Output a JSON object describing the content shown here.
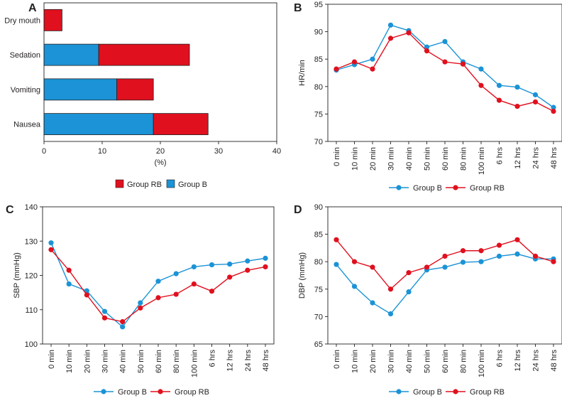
{
  "colors": {
    "group_b": "#1b93d6",
    "group_rb": "#e0101e",
    "axis": "#231f20"
  },
  "chart_data": [
    {
      "panel": "A",
      "type": "bar",
      "orientation": "horizontal",
      "stacked": true,
      "categories": [
        "Dry mouth",
        "Sedation",
        "Vomiting",
        "Nausea"
      ],
      "series": [
        {
          "name": "Group B",
          "values": [
            0,
            9.4,
            12.5,
            18.8
          ]
        },
        {
          "name": "Group RB",
          "values": [
            3.1,
            15.6,
            6.3,
            9.4
          ]
        }
      ],
      "xlim": [
        0,
        40
      ],
      "xticks": [
        "0",
        "10",
        "20",
        "30",
        "40"
      ],
      "xlabel": "(%)",
      "legend": [
        "Group RB",
        "Group B"
      ],
      "legend_position": "bottom"
    },
    {
      "panel": "B",
      "type": "line",
      "categories": [
        "0 min",
        "10 min",
        "20 min",
        "30 min",
        "40 min",
        "50 min",
        "60 min",
        "80 min",
        "100 min",
        "6 hrs",
        "12 hrs",
        "24 hrs",
        "48 hrs"
      ],
      "series": [
        {
          "name": "Group B",
          "values": [
            83.0,
            84.0,
            85.0,
            91.2,
            90.2,
            87.2,
            88.2,
            84.5,
            83.2,
            80.2,
            79.9,
            78.5,
            76.2
          ]
        },
        {
          "name": "Group RB",
          "values": [
            83.2,
            84.5,
            83.2,
            88.8,
            89.8,
            86.5,
            84.5,
            84.1,
            80.2,
            77.5,
            76.4,
            77.2,
            75.5
          ]
        }
      ],
      "ylim": [
        70,
        95
      ],
      "yticks": [
        "70",
        "75",
        "80",
        "85",
        "90",
        "95"
      ],
      "ylabel": "HR/min",
      "legend": [
        "Group B",
        "Group RB"
      ],
      "legend_position": "bottom"
    },
    {
      "panel": "C",
      "type": "line",
      "categories": [
        "0 min",
        "10 min",
        "20 min",
        "30 min",
        "40 min",
        "50 min",
        "60 min",
        "80 min",
        "100 min",
        "6 hrs",
        "12 hrs",
        "24 hrs",
        "48 hrs"
      ],
      "series": [
        {
          "name": "Group B",
          "values": [
            129.5,
            117.5,
            115.5,
            109.5,
            105.0,
            112.0,
            118.3,
            120.5,
            122.5,
            123.1,
            123.3,
            124.2,
            125.0
          ]
        },
        {
          "name": "Group RB",
          "values": [
            127.5,
            121.5,
            114.3,
            107.6,
            106.5,
            110.5,
            113.5,
            114.5,
            117.5,
            115.4,
            119.5,
            121.5,
            122.5
          ]
        }
      ],
      "ylim": [
        100,
        140
      ],
      "yticks": [
        "100",
        "110",
        "120",
        "130",
        "140"
      ],
      "ylabel": "SBP (mmHg)",
      "legend": [
        "Group B",
        "Group RB"
      ],
      "legend_position": "bottom"
    },
    {
      "panel": "D",
      "type": "line",
      "categories": [
        "0 min",
        "10 min",
        "20 min",
        "30 min",
        "40 min",
        "50 min",
        "60 min",
        "80 min",
        "100 min",
        "6 hrs",
        "12 hrs",
        "24 hrs",
        "48 hrs"
      ],
      "series": [
        {
          "name": "Group B",
          "values": [
            79.5,
            75.5,
            72.5,
            70.5,
            74.5,
            78.5,
            79.0,
            79.9,
            80.0,
            81.0,
            81.4,
            80.5,
            80.5
          ]
        },
        {
          "name": "Group RB",
          "values": [
            84.0,
            80.0,
            79.0,
            75.0,
            78.0,
            79.0,
            81.0,
            82.0,
            82.0,
            83.0,
            84.0,
            81.0,
            80.0
          ]
        }
      ],
      "ylim": [
        65,
        90
      ],
      "yticks": [
        "65",
        "70",
        "75",
        "80",
        "85",
        "90"
      ],
      "ylabel": "DBP (mmHg)",
      "legend": [
        "Group B",
        "Group RB"
      ],
      "legend_position": "bottom"
    }
  ]
}
